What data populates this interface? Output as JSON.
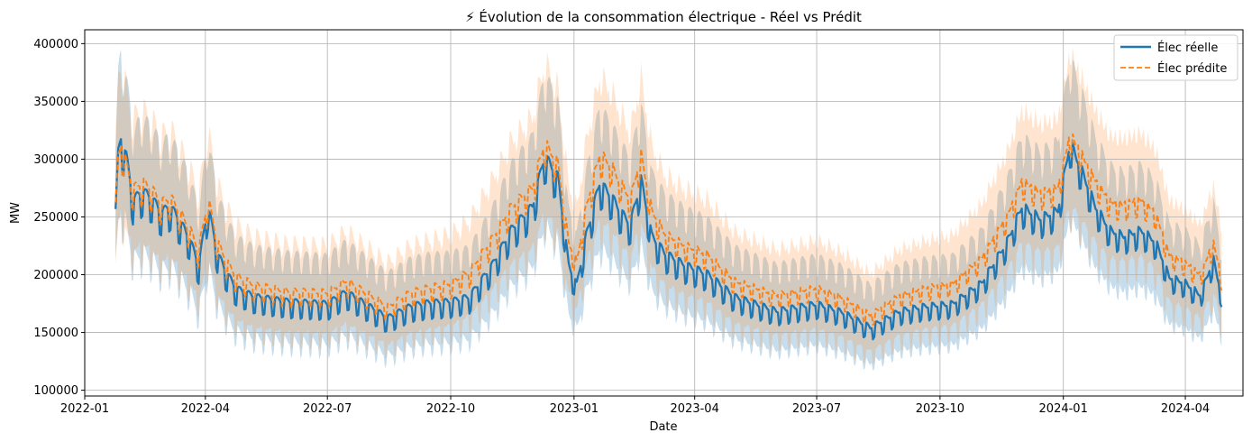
{
  "chart_data": {
    "type": "line",
    "title": "⚡ Évolution de la consommation électrique - Réel vs Prédit",
    "xlabel": "Date",
    "ylabel": "MW",
    "xlim": [
      "2022-01-01",
      "2024-05-14"
    ],
    "ylim": [
      95000,
      412000
    ],
    "x_ticks": [
      "2022-01",
      "2022-04",
      "2022-07",
      "2022-10",
      "2023-01",
      "2023-04",
      "2023-07",
      "2023-10",
      "2024-01",
      "2024-04"
    ],
    "y_ticks": [
      100000,
      150000,
      200000,
      250000,
      300000,
      350000,
      400000
    ],
    "grid": true,
    "legend_position": "top-right",
    "series": [
      {
        "name": "Élec réelle",
        "color": "#1f77b4",
        "style": "solid",
        "band_color": "#1f77b4",
        "points": [
          [
            "2022-01-24",
            252000
          ],
          [
            "2022-01-26",
            300000
          ],
          [
            "2022-01-28",
            313000
          ],
          [
            "2022-02-01",
            298000
          ],
          [
            "2022-02-06",
            260000
          ],
          [
            "2022-02-13",
            268000
          ],
          [
            "2022-02-20",
            262000
          ],
          [
            "2022-02-27",
            250000
          ],
          [
            "2022-03-06",
            255000
          ],
          [
            "2022-03-13",
            242000
          ],
          [
            "2022-03-20",
            228000
          ],
          [
            "2022-03-27",
            205000
          ],
          [
            "2022-04-03",
            255000
          ],
          [
            "2022-04-10",
            215000
          ],
          [
            "2022-04-17",
            198000
          ],
          [
            "2022-04-24",
            185000
          ],
          [
            "2022-05-08",
            178000
          ],
          [
            "2022-06-01",
            174000
          ],
          [
            "2022-07-01",
            172000
          ],
          [
            "2022-07-15",
            182000
          ],
          [
            "2022-08-01",
            170000
          ],
          [
            "2022-08-15",
            160000
          ],
          [
            "2022-09-01",
            170000
          ],
          [
            "2022-09-15",
            173000
          ],
          [
            "2022-10-01",
            174000
          ],
          [
            "2022-10-15",
            178000
          ],
          [
            "2022-11-01",
            205000
          ],
          [
            "2022-11-15",
            235000
          ],
          [
            "2022-12-01",
            255000
          ],
          [
            "2022-12-10",
            298000
          ],
          [
            "2022-12-20",
            280000
          ],
          [
            "2022-12-28",
            205000
          ],
          [
            "2023-01-03",
            188000
          ],
          [
            "2023-01-10",
            230000
          ],
          [
            "2023-01-20",
            275000
          ],
          [
            "2023-01-28",
            265000
          ],
          [
            "2023-02-05",
            250000
          ],
          [
            "2023-02-12",
            240000
          ],
          [
            "2023-02-20",
            278000
          ],
          [
            "2023-02-28",
            230000
          ],
          [
            "2023-03-10",
            215000
          ],
          [
            "2023-03-25",
            205000
          ],
          [
            "2023-04-10",
            198000
          ],
          [
            "2023-05-01",
            178000
          ],
          [
            "2023-06-01",
            166000
          ],
          [
            "2023-07-01",
            172000
          ],
          [
            "2023-07-20",
            165000
          ],
          [
            "2023-08-10",
            152000
          ],
          [
            "2023-09-01",
            166000
          ],
          [
            "2023-09-20",
            170000
          ],
          [
            "2023-10-10",
            172000
          ],
          [
            "2023-11-01",
            190000
          ],
          [
            "2023-11-20",
            225000
          ],
          [
            "2023-12-01",
            255000
          ],
          [
            "2023-12-15",
            245000
          ],
          [
            "2023-12-28",
            252000
          ],
          [
            "2024-01-06",
            310000
          ],
          [
            "2024-01-15",
            285000
          ],
          [
            "2024-01-25",
            255000
          ],
          [
            "2024-02-05",
            235000
          ],
          [
            "2024-02-15",
            230000
          ],
          [
            "2024-02-28",
            235000
          ],
          [
            "2024-03-10",
            225000
          ],
          [
            "2024-03-20",
            195000
          ],
          [
            "2024-04-01",
            190000
          ],
          [
            "2024-04-12",
            180000
          ],
          [
            "2024-04-22",
            210000
          ],
          [
            "2024-04-28",
            180000
          ]
        ]
      },
      {
        "name": "Élec prédite",
        "color": "#ff7f0e",
        "style": "dashed",
        "band_color": "#ff7f0e",
        "points": [
          [
            "2022-01-24",
            255000
          ],
          [
            "2022-01-26",
            298000
          ],
          [
            "2022-01-28",
            309000
          ],
          [
            "2022-02-01",
            292000
          ],
          [
            "2022-02-06",
            270000
          ],
          [
            "2022-02-13",
            276000
          ],
          [
            "2022-02-20",
            270000
          ],
          [
            "2022-02-27",
            258000
          ],
          [
            "2022-03-06",
            263000
          ],
          [
            "2022-03-13",
            250000
          ],
          [
            "2022-03-20",
            237000
          ],
          [
            "2022-03-27",
            218000
          ],
          [
            "2022-04-03",
            262000
          ],
          [
            "2022-04-10",
            225000
          ],
          [
            "2022-04-17",
            208000
          ],
          [
            "2022-04-24",
            196000
          ],
          [
            "2022-05-08",
            188000
          ],
          [
            "2022-06-01",
            183000
          ],
          [
            "2022-07-01",
            182000
          ],
          [
            "2022-07-15",
            192000
          ],
          [
            "2022-08-01",
            180000
          ],
          [
            "2022-08-15",
            170000
          ],
          [
            "2022-09-01",
            182000
          ],
          [
            "2022-09-15",
            186000
          ],
          [
            "2022-10-01",
            190000
          ],
          [
            "2022-10-15",
            200000
          ],
          [
            "2022-11-01",
            228000
          ],
          [
            "2022-11-15",
            255000
          ],
          [
            "2022-12-01",
            272000
          ],
          [
            "2022-12-10",
            310000
          ],
          [
            "2022-12-20",
            292000
          ],
          [
            "2022-12-28",
            225000
          ],
          [
            "2023-01-03",
            208000
          ],
          [
            "2023-01-10",
            255000
          ],
          [
            "2023-01-20",
            300000
          ],
          [
            "2023-01-28",
            292000
          ],
          [
            "2023-02-05",
            275000
          ],
          [
            "2023-02-12",
            262000
          ],
          [
            "2023-02-20",
            300000
          ],
          [
            "2023-02-28",
            252000
          ],
          [
            "2023-03-10",
            232000
          ],
          [
            "2023-03-25",
            222000
          ],
          [
            "2023-04-10",
            215000
          ],
          [
            "2023-05-01",
            192000
          ],
          [
            "2023-06-01",
            180000
          ],
          [
            "2023-07-01",
            186000
          ],
          [
            "2023-07-20",
            178000
          ],
          [
            "2023-08-10",
            163000
          ],
          [
            "2023-09-01",
            180000
          ],
          [
            "2023-09-20",
            186000
          ],
          [
            "2023-10-10",
            190000
          ],
          [
            "2023-11-01",
            212000
          ],
          [
            "2023-11-20",
            248000
          ],
          [
            "2023-12-01",
            278000
          ],
          [
            "2023-12-15",
            268000
          ],
          [
            "2023-12-28",
            272000
          ],
          [
            "2024-01-06",
            318000
          ],
          [
            "2024-01-15",
            300000
          ],
          [
            "2024-01-25",
            278000
          ],
          [
            "2024-02-05",
            260000
          ],
          [
            "2024-02-15",
            258000
          ],
          [
            "2024-02-28",
            262000
          ],
          [
            "2024-03-10",
            250000
          ],
          [
            "2024-03-20",
            215000
          ],
          [
            "2024-04-01",
            208000
          ],
          [
            "2024-04-12",
            198000
          ],
          [
            "2024-04-22",
            225000
          ],
          [
            "2024-04-28",
            195000
          ]
        ]
      }
    ]
  }
}
